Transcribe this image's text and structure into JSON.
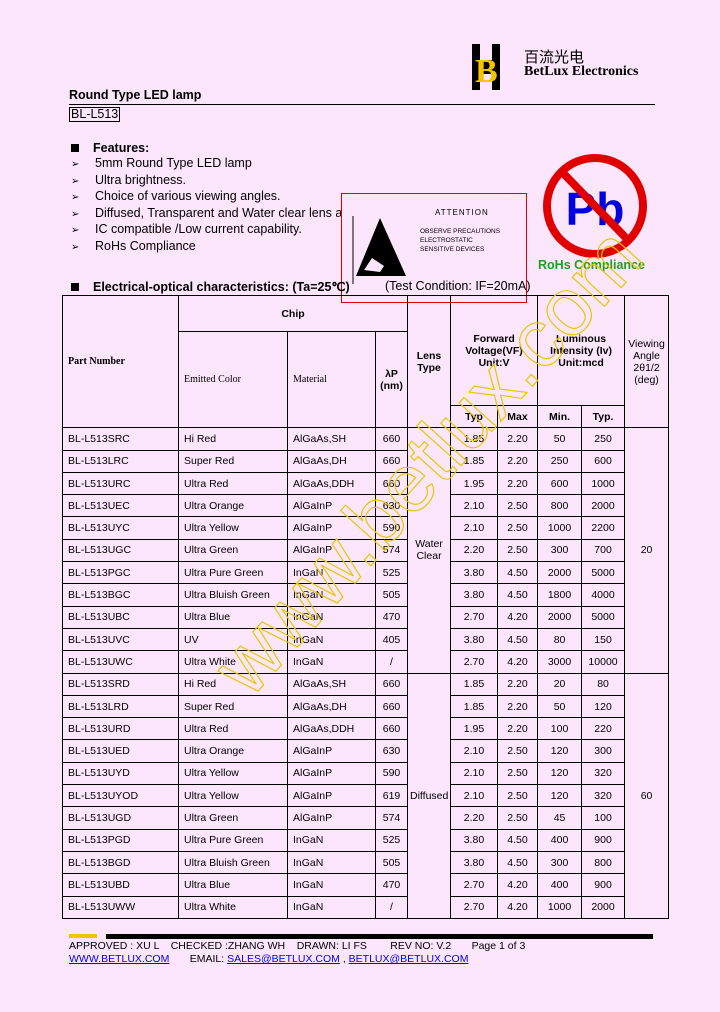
{
  "logo": {
    "chinese": "百流光电",
    "english": "BetLux Electronics",
    "letter": "B",
    "yellow": "#f5c400"
  },
  "doc": {
    "title": "Round Type LED lamp",
    "model": "BL-L513"
  },
  "features": {
    "heading": "Features:",
    "items": [
      "5mm Round Type LED lamp",
      "Ultra brightness.",
      "Choice of various viewing angles.",
      "Diffused, Transparent and Water clear lens a",
      "IC compatible /Low current capability.",
      "RoHs Compliance"
    ]
  },
  "esd": {
    "title": "ATTENTION",
    "lines": [
      "OBSERVE PRECAUTIONS",
      "ELECTROSTATIC",
      "SENSITIVE DEVICES"
    ]
  },
  "rohs": {
    "symbol": "Pb",
    "label": "RoHs Compliance",
    "green": "#20a020",
    "red": "#e00000",
    "blue": "#0000e0"
  },
  "section2": {
    "heading": "Electrical-optical characteristics: (Ta=25℃)",
    "condition": "(Test Condition: IF=20mA)"
  },
  "table": {
    "headers": {
      "part": "Part Number",
      "chip": "Chip",
      "color": "Emitted Color",
      "material": "Material",
      "wl": "λP (nm)",
      "lens": "Lens Type",
      "vf": "Forward Voltage(VF) Unit:V",
      "iv": "Luminous Intensity (Iv) Unit:mcd",
      "angle": "Viewing Angle 2θ1/2 (deg)",
      "typ": "Typ",
      "max": "Max",
      "min": "Min.",
      "typ2": "Typ."
    },
    "groups": [
      {
        "lens": "Water Clear",
        "angle": "20",
        "rows": [
          [
            "BL-L513SRC",
            "Hi Red",
            "AlGaAs,SH",
            "660",
            "1.85",
            "2.20",
            "50",
            "250"
          ],
          [
            "BL-L513LRC",
            "Super Red",
            "AlGaAs,DH",
            "660",
            "1.85",
            "2.20",
            "250",
            "600"
          ],
          [
            "BL-L513URC",
            "Ultra Red",
            "AlGaAs,DDH",
            "660",
            "1.95",
            "2.20",
            "600",
            "1000"
          ],
          [
            "BL-L513UEC",
            "Ultra Orange",
            "AlGaInP",
            "630",
            "2.10",
            "2.50",
            "800",
            "2000"
          ],
          [
            "BL-L513UYC",
            "Ultra Yellow",
            "AlGaInP",
            "590",
            "2.10",
            "2.50",
            "1000",
            "2200"
          ],
          [
            "BL-L513UGC",
            "Ultra Green",
            "AlGaInP",
            "574",
            "2.20",
            "2.50",
            "300",
            "700"
          ],
          [
            "BL-L513PGC",
            "Ultra Pure Green",
            "InGaN",
            "525",
            "3.80",
            "4.50",
            "2000",
            "5000"
          ],
          [
            "BL-L513BGC",
            "Ultra Bluish Green",
            "InGaN",
            "505",
            "3.80",
            "4.50",
            "1800",
            "4000"
          ],
          [
            "BL-L513UBC",
            "Ultra Blue",
            "InGaN",
            "470",
            "2.70",
            "4.20",
            "2000",
            "5000"
          ],
          [
            "BL-L513UVC",
            "UV",
            "InGaN",
            "405",
            "3.80",
            "4.50",
            "80",
            "150"
          ],
          [
            "BL-L513UWC",
            "Ultra White",
            "InGaN",
            "/",
            "2.70",
            "4.20",
            "3000",
            "10000"
          ]
        ]
      },
      {
        "lens": "Diffused",
        "angle": "60",
        "rows": [
          [
            "BL-L513SRD",
            "Hi Red",
            "AlGaAs,SH",
            "660",
            "1.85",
            "2.20",
            "20",
            "80"
          ],
          [
            "BL-L513LRD",
            "Super Red",
            "AlGaAs,DH",
            "660",
            "1.85",
            "2.20",
            "50",
            "120"
          ],
          [
            "BL-L513URD",
            "Ultra Red",
            "AlGaAs,DDH",
            "660",
            "1.95",
            "2.20",
            "100",
            "220"
          ],
          [
            "BL-L513UED",
            "Ultra Orange",
            "AlGaInP",
            "630",
            "2.10",
            "2.50",
            "120",
            "300"
          ],
          [
            "BL-L513UYD",
            "Ultra Yellow",
            "AlGaInP",
            "590",
            "2.10",
            "2.50",
            "120",
            "320"
          ],
          [
            "BL-L513UYOD",
            "Ultra Yellow",
            "AlGaInP",
            "619",
            "2.10",
            "2.50",
            "120",
            "320"
          ],
          [
            "BL-L513UGD",
            "Ultra Green",
            "AlGaInP",
            "574",
            "2.20",
            "2.50",
            "45",
            "100"
          ],
          [
            "BL-L513PGD",
            "Ultra Pure Green",
            "InGaN",
            "525",
            "3.80",
            "4.50",
            "400",
            "900"
          ],
          [
            "BL-L513BGD",
            "Ultra Bluish Green",
            "InGaN",
            "505",
            "3.80",
            "4.50",
            "300",
            "800"
          ],
          [
            "BL-L513UBD",
            "Ultra Blue",
            "InGaN",
            "470",
            "2.70",
            "4.20",
            "400",
            "900"
          ],
          [
            "BL-L513UWW",
            "Ultra White",
            "InGaN",
            "/",
            "2.70",
            "4.20",
            "1000",
            "2000"
          ]
        ]
      }
    ]
  },
  "footer": {
    "line1": "APPROVED : XU L    CHECKED :ZHANG WH    DRAWN: LI FS        REV NO: V.2       Page 1 of 3",
    "website": "WWW.BETLUX.COM",
    "email_label": "EMAIL:",
    "email1": "SALES@BETLUX.COM",
    "sep": ",",
    "email2": "BETLUX@BETLUX.COM"
  },
  "watermark": "www.betlux.com"
}
